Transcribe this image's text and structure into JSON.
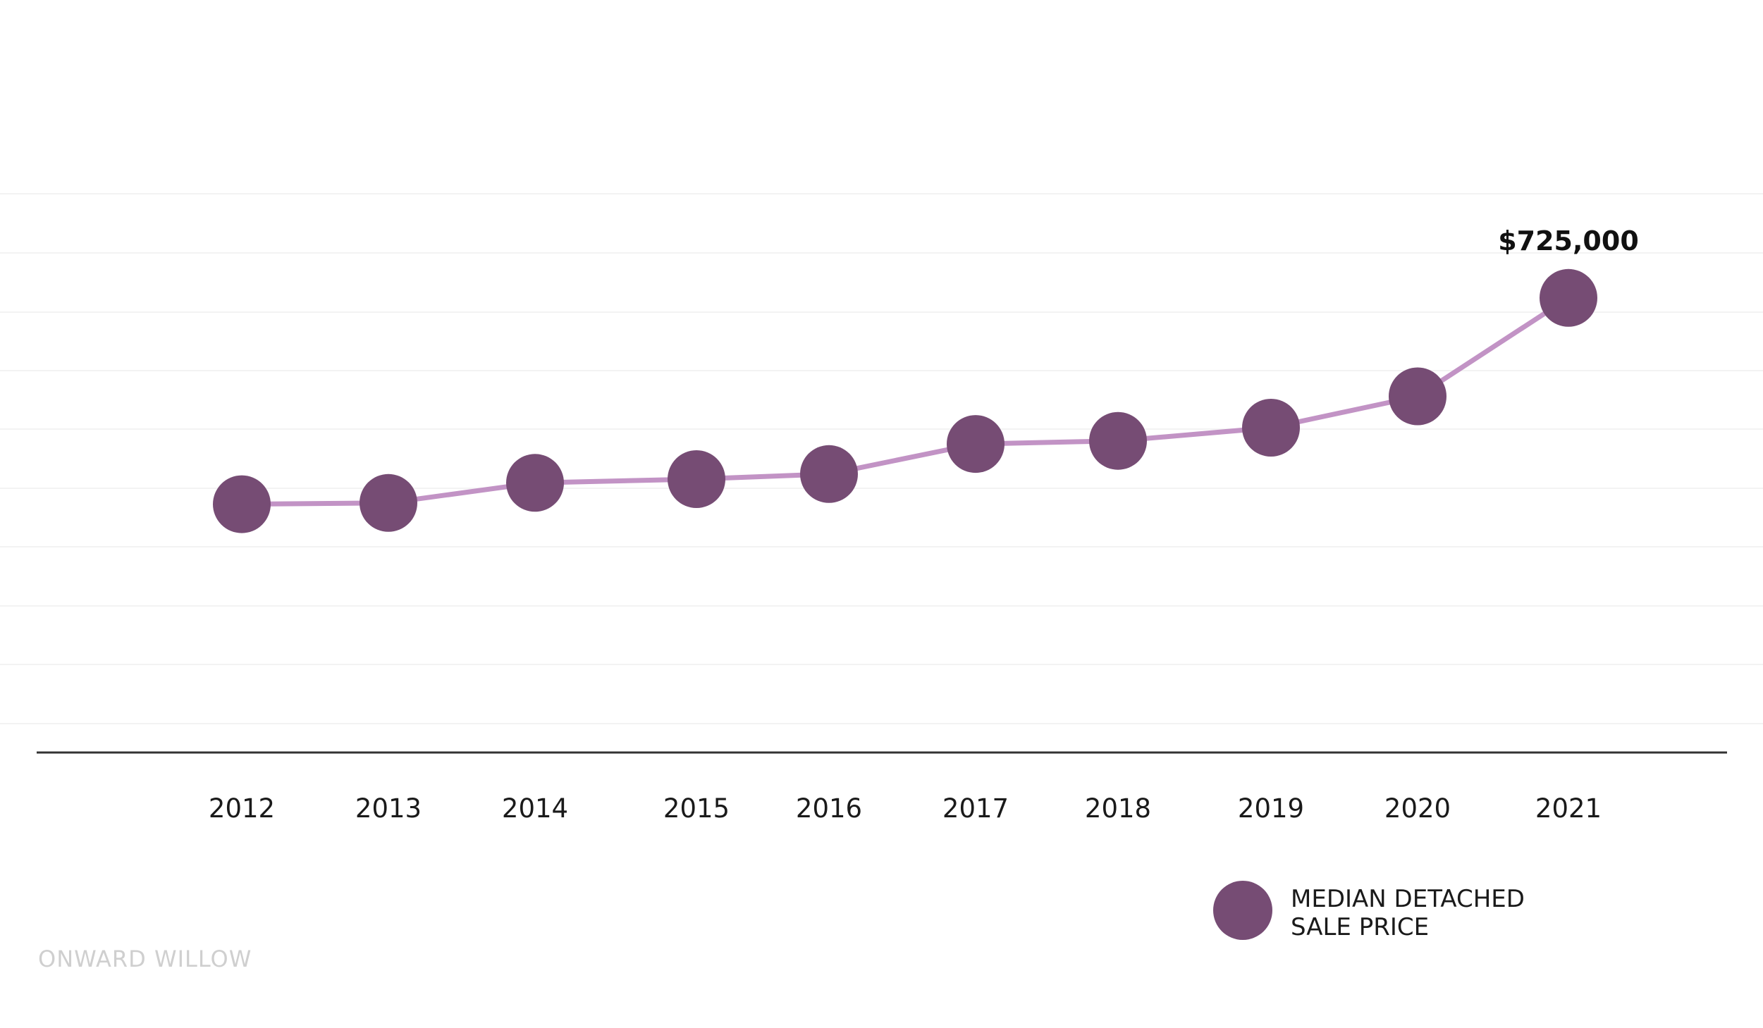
{
  "chart_data": {
    "type": "line",
    "title": "",
    "xlabel": "",
    "ylabel": "",
    "categories": [
      "2012",
      "2013",
      "2014",
      "2015",
      "2016",
      "2017",
      "2018",
      "2019",
      "2020",
      "2021"
    ],
    "series": [
      {
        "name": "MEDIAN DETACHED SALE PRICE",
        "values": [
          396000,
          398000,
          430000,
          436000,
          444000,
          492000,
          497000,
          518000,
          568000,
          725000
        ],
        "color": "#764c74",
        "line_color": "#c293c5"
      }
    ],
    "data_labels": [
      {
        "category": "2021",
        "text": "$725,000"
      }
    ],
    "y_range": [
      0,
      1200000
    ],
    "grid": true,
    "legend": {
      "position": "bottom-right",
      "lines": [
        "MEDIAN DETACHED",
        "SALE PRICE"
      ]
    }
  },
  "watermark": "ONWARD WILLOW"
}
